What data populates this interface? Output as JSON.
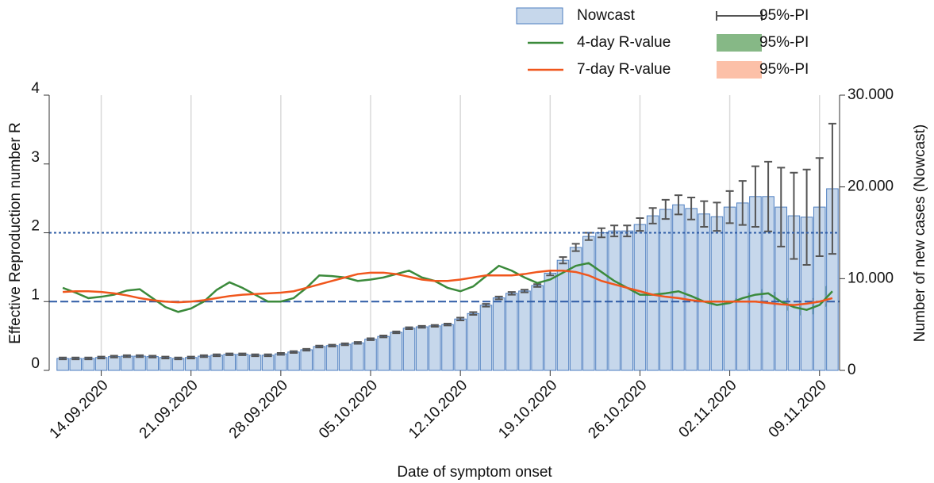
{
  "chart_data": {
    "type": "combo",
    "x_label": "Date of symptom onset",
    "y_label": "Effective Reproduction number R",
    "y2_label": "Number of new cases (Nowcast)",
    "categories": [
      null,
      null,
      null,
      "14.09.2020",
      null,
      null,
      null,
      null,
      null,
      null,
      "21.09.2020",
      null,
      null,
      null,
      null,
      null,
      null,
      "28.09.2020",
      null,
      null,
      null,
      null,
      null,
      null,
      "05.10.2020",
      null,
      null,
      null,
      null,
      null,
      null,
      "12.10.2020",
      null,
      null,
      null,
      null,
      null,
      null,
      "19.10.2020",
      null,
      null,
      null,
      null,
      null,
      null,
      "26.10.2020",
      null,
      null,
      null,
      null,
      null,
      null,
      "02.11.2020",
      null,
      null,
      null,
      null,
      null,
      null,
      "09.11.2020",
      null
    ],
    "ylim": [
      0,
      4
    ],
    "yticks": [
      0,
      1,
      2,
      3,
      4
    ],
    "y2lim": [
      0,
      30000
    ],
    "y2ticks": [
      0,
      {
        "value": 10000,
        "label": "10.000"
      },
      {
        "value": 20000,
        "label": "20.000"
      },
      {
        "value": 30000,
        "label": "30.000"
      }
    ],
    "grid": "x",
    "reference_lines": [
      {
        "value": 1,
        "style": "dashed",
        "color": "#2f5ca6"
      },
      {
        "value": 2,
        "style": "dotted",
        "color": "#2f5ca6"
      }
    ],
    "series": [
      {
        "name": "Nowcast",
        "type": "bar",
        "axis": "y2",
        "color": "#c6d7eb",
        "edge_color": "#4f7fc0",
        "values": [
          1300,
          1300,
          1300,
          1400,
          1500,
          1550,
          1550,
          1500,
          1400,
          1300,
          1400,
          1550,
          1650,
          1750,
          1750,
          1650,
          1650,
          1800,
          2000,
          2250,
          2600,
          2700,
          2850,
          3000,
          3400,
          3700,
          4150,
          4600,
          4750,
          4850,
          5000,
          5600,
          6200,
          7100,
          7900,
          8400,
          8650,
          9250,
          10600,
          12000,
          13400,
          14600,
          15000,
          15200,
          15200,
          15900,
          16850,
          17550,
          18050,
          17650,
          17050,
          16750,
          17800,
          18250,
          18950,
          18950,
          17800,
          16850,
          16700,
          17800,
          19800
        ],
        "errors": [
          100,
          100,
          100,
          100,
          100,
          100,
          100,
          100,
          100,
          100,
          100,
          100,
          100,
          100,
          100,
          100,
          100,
          100,
          100,
          100,
          100,
          100,
          100,
          100,
          100,
          100,
          100,
          100,
          100,
          100,
          100,
          150,
          150,
          150,
          150,
          150,
          150,
          150,
          250,
          350,
          400,
          400,
          500,
          600,
          600,
          700,
          850,
          1050,
          1050,
          1200,
          1400,
          1550,
          1750,
          2400,
          3300,
          3800,
          4300,
          4700,
          5200,
          5350,
          7100
        ],
        "error_name": "95%-PI",
        "error_color": "#555555"
      },
      {
        "name": "4-day R-value",
        "type": "line",
        "color": "#3b8a3b",
        "values": [
          1.2,
          1.13,
          1.05,
          1.07,
          1.1,
          1.16,
          1.18,
          1.05,
          0.92,
          0.85,
          0.9,
          1.0,
          1.17,
          1.28,
          1.2,
          1.1,
          1.0,
          1.0,
          1.05,
          1.2,
          1.38,
          1.37,
          1.35,
          1.3,
          1.32,
          1.35,
          1.4,
          1.45,
          1.35,
          1.3,
          1.2,
          1.15,
          1.22,
          1.37,
          1.52,
          1.45,
          1.35,
          1.27,
          1.32,
          1.42,
          1.52,
          1.56,
          1.43,
          1.3,
          1.2,
          1.1,
          1.1,
          1.12,
          1.15,
          1.08,
          1.0,
          0.95,
          0.98,
          1.05,
          1.1,
          1.12,
          1.0,
          0.92,
          0.88,
          0.95,
          1.15
        ],
        "lower": [
          null,
          null,
          null,
          null,
          null,
          null,
          null,
          null,
          null,
          null,
          null,
          null,
          null,
          null,
          null,
          null,
          null,
          null,
          null,
          null,
          null,
          null,
          null,
          null,
          null,
          null,
          null,
          null,
          null,
          null,
          null,
          null,
          null,
          null,
          null,
          null,
          null,
          null,
          null,
          null,
          null,
          null,
          null,
          null,
          null,
          null,
          null,
          null,
          null,
          null,
          null,
          null,
          0.96,
          1.0,
          1.04,
          1.05,
          0.92,
          0.82,
          0.78,
          0.85,
          1.0
        ],
        "upper": [
          null,
          null,
          null,
          null,
          null,
          null,
          null,
          null,
          null,
          null,
          null,
          null,
          null,
          null,
          null,
          null,
          null,
          null,
          null,
          null,
          null,
          null,
          null,
          null,
          null,
          null,
          null,
          null,
          null,
          null,
          null,
          null,
          null,
          null,
          null,
          null,
          null,
          null,
          null,
          null,
          null,
          null,
          null,
          null,
          null,
          null,
          null,
          null,
          null,
          null,
          null,
          null,
          1.0,
          1.1,
          1.16,
          1.2,
          1.08,
          1.02,
          1.0,
          1.1,
          1.35
        ],
        "band_name": "95%-PI",
        "band_color": "#86b886"
      },
      {
        "name": "7-day R-value",
        "type": "line",
        "color": "#f0561c",
        "values": [
          1.14,
          1.15,
          1.15,
          1.14,
          1.12,
          1.09,
          1.05,
          1.02,
          1.0,
          0.99,
          1.0,
          1.02,
          1.05,
          1.08,
          1.1,
          1.11,
          1.12,
          1.13,
          1.15,
          1.2,
          1.25,
          1.3,
          1.35,
          1.4,
          1.42,
          1.42,
          1.4,
          1.36,
          1.32,
          1.3,
          1.3,
          1.32,
          1.35,
          1.38,
          1.38,
          1.38,
          1.4,
          1.43,
          1.45,
          1.45,
          1.43,
          1.38,
          1.3,
          1.25,
          1.2,
          1.15,
          1.1,
          1.07,
          1.05,
          1.02,
          1.0,
          1.0,
          1.0,
          1.0,
          1.0,
          0.98,
          0.96,
          0.95,
          0.97,
          1.0,
          1.05
        ],
        "lower": [
          null,
          null,
          null,
          null,
          null,
          null,
          null,
          null,
          null,
          null,
          null,
          null,
          null,
          null,
          null,
          null,
          null,
          null,
          null,
          null,
          null,
          null,
          null,
          null,
          null,
          null,
          null,
          null,
          null,
          null,
          null,
          null,
          null,
          null,
          null,
          null,
          null,
          null,
          null,
          null,
          null,
          null,
          null,
          null,
          null,
          null,
          null,
          null,
          null,
          null,
          null,
          null,
          null,
          0.97,
          0.96,
          0.94,
          0.92,
          0.92,
          0.94,
          0.96,
          0.98
        ],
        "upper": [
          null,
          null,
          null,
          null,
          null,
          null,
          null,
          null,
          null,
          null,
          null,
          null,
          null,
          null,
          null,
          null,
          null,
          null,
          null,
          null,
          null,
          null,
          null,
          null,
          null,
          null,
          null,
          null,
          null,
          null,
          null,
          null,
          null,
          null,
          null,
          null,
          null,
          null,
          null,
          null,
          null,
          null,
          null,
          null,
          null,
          null,
          null,
          null,
          null,
          null,
          null,
          null,
          null,
          1.03,
          1.04,
          1.02,
          1.0,
          1.0,
          1.02,
          1.06,
          1.12
        ],
        "band_name": "95%-PI",
        "band_color": "#fcc0a8"
      }
    ]
  }
}
